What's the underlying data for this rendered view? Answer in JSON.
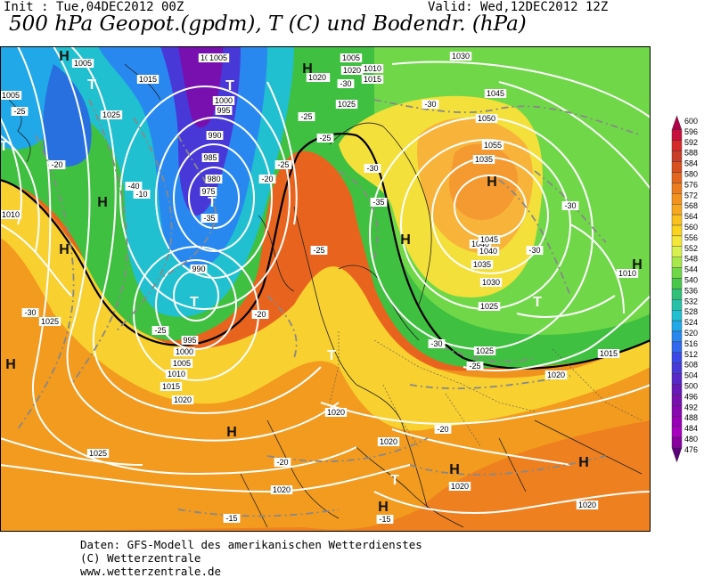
{
  "header": {
    "init": "Init : Tue,04DEC2012 00Z",
    "valid": "Valid: Wed,12DEC2012 12Z",
    "title": "500 hPa Geopot.(gpdm), T (C) und Bodendr. (hPa)"
  },
  "footer": {
    "line1": "Daten: GFS-Modell des amerikanischen Wetterdienstes",
    "line2": "(C) Wetterzentrale",
    "line3": "www.wetterzentrale.de"
  },
  "colorbar": {
    "levels": [
      "600",
      "596",
      "592",
      "588",
      "584",
      "580",
      "576",
      "572",
      "568",
      "564",
      "560",
      "556",
      "552",
      "548",
      "544",
      "540",
      "536",
      "532",
      "528",
      "524",
      "520",
      "516",
      "512",
      "508",
      "504",
      "500",
      "496",
      "492",
      "488",
      "484",
      "480",
      "476"
    ],
    "colors": [
      "#b0004a",
      "#c8103c",
      "#d62a2a",
      "#c83c28",
      "#d8501e",
      "#e4661e",
      "#ec7c1e",
      "#f4921e",
      "#f8a81e",
      "#fac01e",
      "#fad41e",
      "#f6e83a",
      "#d8f050",
      "#a8e84a",
      "#70d848",
      "#48c848",
      "#30c078",
      "#28c0a8",
      "#20c0d0",
      "#20a8e8",
      "#2888f0",
      "#3068f0",
      "#3a48e8",
      "#4838d8",
      "#5828c8",
      "#6818b8",
      "#7810b0",
      "#8808b0",
      "#9800b8",
      "#a800c0",
      "#8800a0",
      "#5a007a"
    ]
  },
  "map": {
    "pressure_labels": [
      "1005",
      "1010",
      "1015",
      "1020",
      "1025",
      "1030",
      "1035",
      "1040",
      "1045",
      "1050",
      "1055",
      "1000",
      "995",
      "990",
      "985",
      "980",
      "975"
    ],
    "temp_labels": [
      "-20",
      "-25",
      "-30",
      "-35",
      "-40",
      "-15",
      "-10"
    ],
    "pressure_centers": [
      {
        "type": "H",
        "lon_lat_hint": "scandinavia"
      },
      {
        "type": "T",
        "lon_lat_hint": "iceland"
      }
    ]
  }
}
